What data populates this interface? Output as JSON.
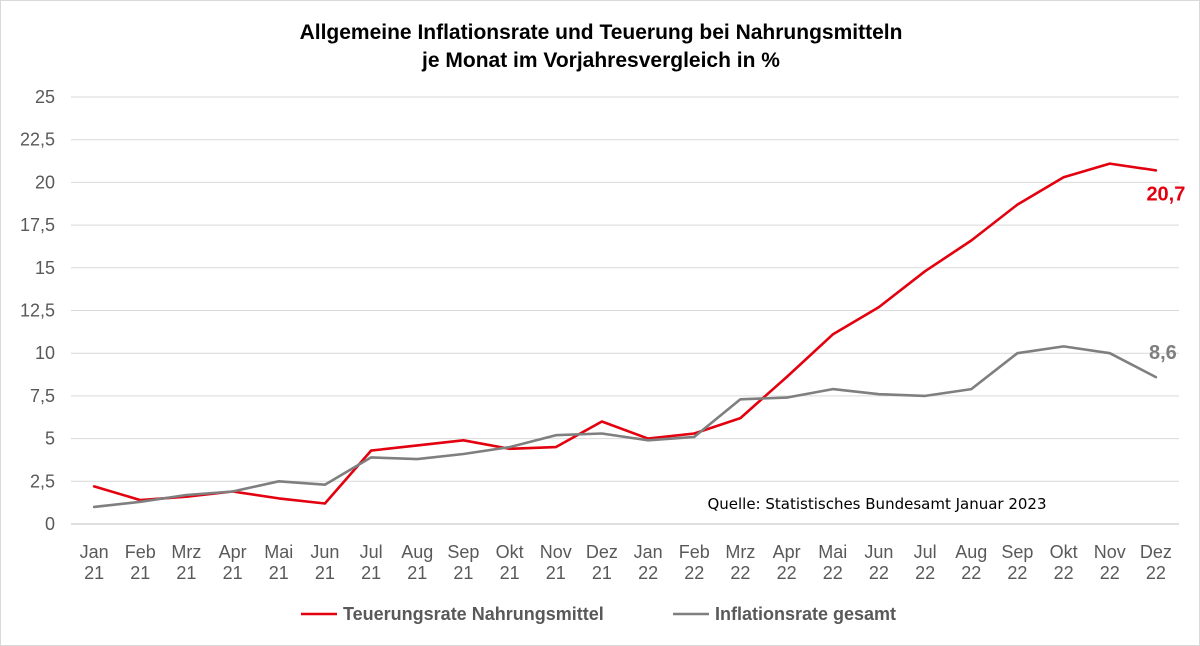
{
  "chart_data": {
    "type": "line",
    "title": [
      "Allgemeine Inflationsrate und Teuerung bei Nahrungsmitteln",
      "je Monat im Vorjahresvergleich in %"
    ],
    "categories": [
      [
        "Jan",
        "21"
      ],
      [
        "Feb",
        "21"
      ],
      [
        "Mrz",
        "21"
      ],
      [
        "Apr",
        "21"
      ],
      [
        "Mai",
        "21"
      ],
      [
        "Jun",
        "21"
      ],
      [
        "Jul",
        "21"
      ],
      [
        "Aug",
        "21"
      ],
      [
        "Sep",
        "21"
      ],
      [
        "Okt",
        "21"
      ],
      [
        "Nov",
        "21"
      ],
      [
        "Dez",
        "21"
      ],
      [
        "Jan",
        "22"
      ],
      [
        "Feb",
        "22"
      ],
      [
        "Mrz",
        "22"
      ],
      [
        "Apr",
        "22"
      ],
      [
        "Mai",
        "22"
      ],
      [
        "Jun",
        "22"
      ],
      [
        "Jul",
        "22"
      ],
      [
        "Aug",
        "22"
      ],
      [
        "Sep",
        "22"
      ],
      [
        "Okt",
        "22"
      ],
      [
        "Nov",
        "22"
      ],
      [
        "Dez",
        "22"
      ]
    ],
    "ylim": [
      0,
      25
    ],
    "yticks": [
      "0",
      "2,5",
      "5",
      "7,5",
      "10",
      "12,5",
      "15",
      "17,5",
      "20",
      "22,5",
      "25"
    ],
    "grid": "horizontal",
    "legend_position": "bottom",
    "series": [
      {
        "name": "Teuerungsrate Nahrungsmittel",
        "color": "#e3000f",
        "values": [
          2.2,
          1.4,
          1.6,
          1.9,
          1.5,
          1.2,
          4.3,
          4.6,
          4.9,
          4.4,
          4.5,
          6.0,
          5.0,
          5.3,
          6.2,
          8.6,
          11.1,
          12.7,
          14.8,
          16.6,
          18.7,
          20.3,
          21.1,
          20.7
        ],
        "end_label": "20,7"
      },
      {
        "name": "Inflationsrate gesamt",
        "color": "#7f7f7f",
        "values": [
          1.0,
          1.3,
          1.7,
          1.9,
          2.5,
          2.3,
          3.9,
          3.8,
          4.1,
          4.5,
          5.2,
          5.3,
          4.9,
          5.1,
          7.3,
          7.4,
          7.9,
          7.6,
          7.5,
          7.9,
          10.0,
          10.4,
          10.0,
          8.6
        ],
        "end_label": "8,6"
      }
    ],
    "annotation": "Quelle: Statistisches Bundesamt Januar 2023"
  }
}
